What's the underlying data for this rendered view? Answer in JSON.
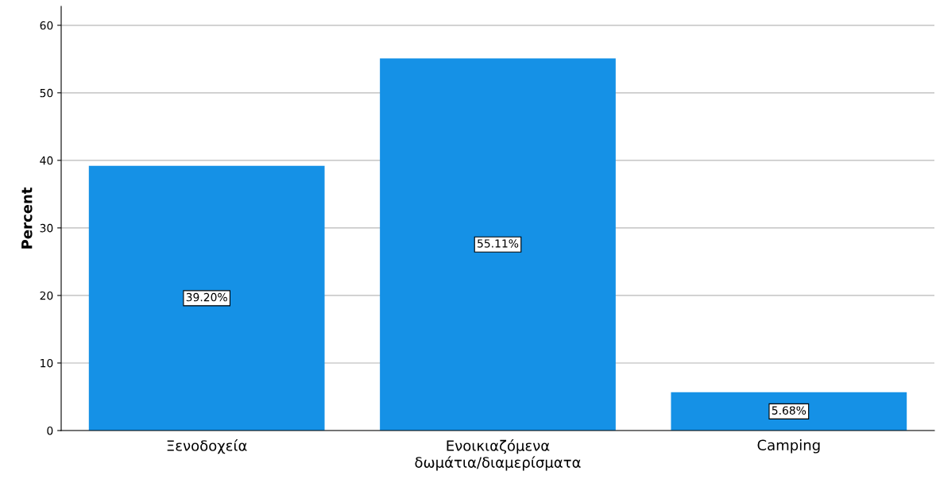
{
  "chart_data": {
    "type": "bar",
    "ylabel": "Percent",
    "categories": [
      "Ξενοδοχεία",
      "Ενοικιαζόμενα\nδωμάτια/διαμερίσματα",
      "Camping"
    ],
    "values": [
      39.2,
      55.11,
      5.68
    ],
    "value_labels": [
      "39.20%",
      "55.11%",
      "5.68%"
    ],
    "color": "#1591e6",
    "ylim": [
      0,
      62.8
    ],
    "yticks": [
      0,
      10,
      20,
      30,
      40,
      50,
      60
    ],
    "grid": "y"
  }
}
